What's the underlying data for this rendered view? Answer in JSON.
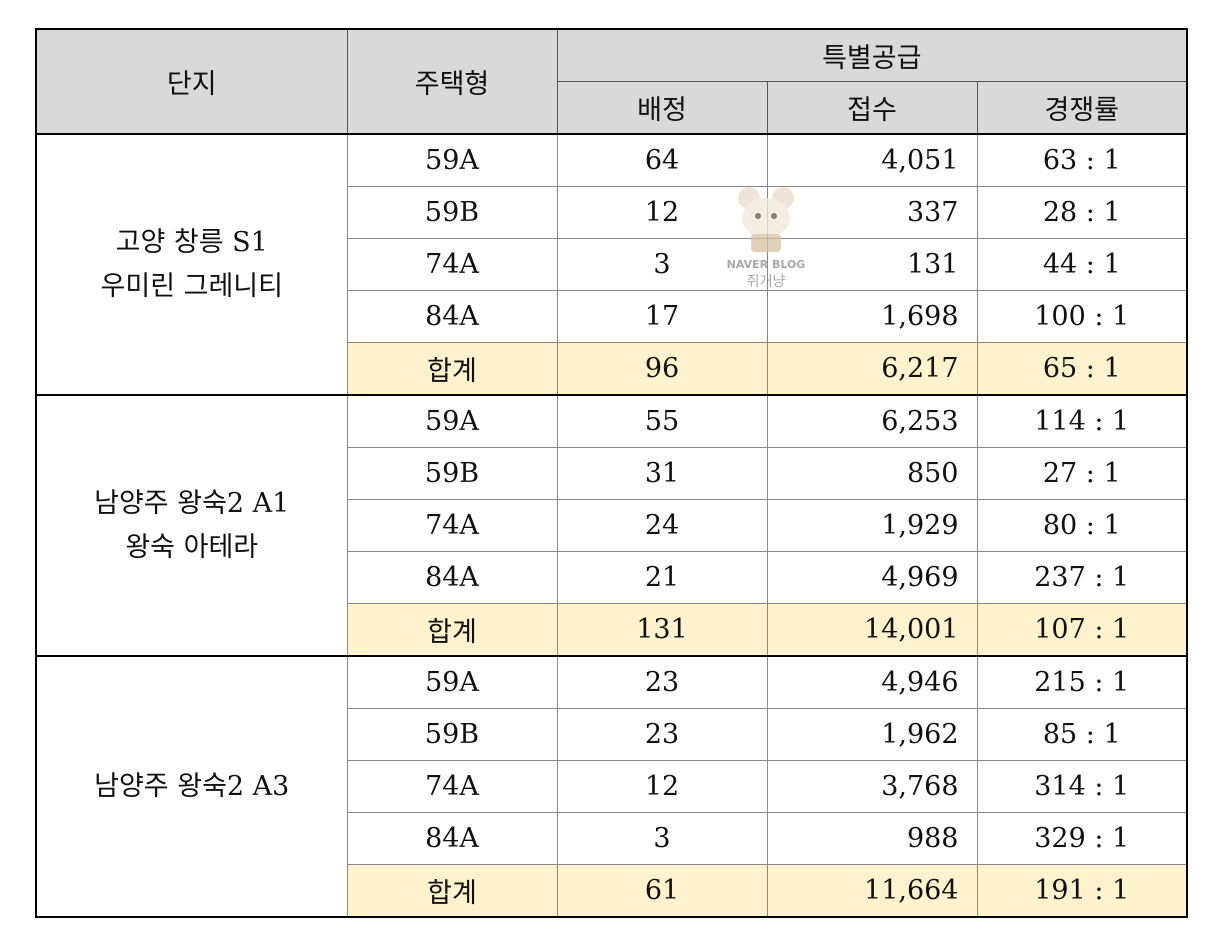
{
  "header": {
    "complex": "단지",
    "housing_type": "주택형",
    "special_supply": "특별공급",
    "allotted": "배정",
    "applied": "접수",
    "ratio": "경쟁률"
  },
  "groups": [
    {
      "name_lines": [
        "고양 창릉 S1",
        "우미린 그레니티"
      ],
      "rows": [
        [
          "59A",
          "64",
          "4,051",
          "63 : 1"
        ],
        [
          "59B",
          "12",
          "337",
          "28 : 1"
        ],
        [
          "74A",
          "3",
          "131",
          "44 : 1"
        ],
        [
          "84A",
          "17",
          "1,698",
          "100 : 1"
        ]
      ],
      "total": [
        "합계",
        "96",
        "6,217",
        "65 : 1"
      ]
    },
    {
      "name_lines": [
        "남양주 왕숙2 A1",
        "왕숙 아테라"
      ],
      "rows": [
        [
          "59A",
          "55",
          "6,253",
          "114 : 1"
        ],
        [
          "59B",
          "31",
          "850",
          "27 : 1"
        ],
        [
          "74A",
          "24",
          "1,929",
          "80 : 1"
        ],
        [
          "84A",
          "21",
          "4,969",
          "237 : 1"
        ]
      ],
      "total": [
        "합계",
        "131",
        "14,001",
        "107 : 1"
      ]
    },
    {
      "name_lines": [
        "남양주 왕숙2 A3"
      ],
      "rows": [
        [
          "59A",
          "23",
          "4,946",
          "215 : 1"
        ],
        [
          "59B",
          "23",
          "1,962",
          "85 : 1"
        ],
        [
          "74A",
          "12",
          "3,768",
          "314 : 1"
        ],
        [
          "84A",
          "3",
          "988",
          "329 : 1"
        ]
      ],
      "total": [
        "합계",
        "61",
        "11,664",
        "191 : 1"
      ]
    }
  ],
  "watermark": {
    "brand": "NAVER BLOG",
    "name": "쥐개냥"
  }
}
